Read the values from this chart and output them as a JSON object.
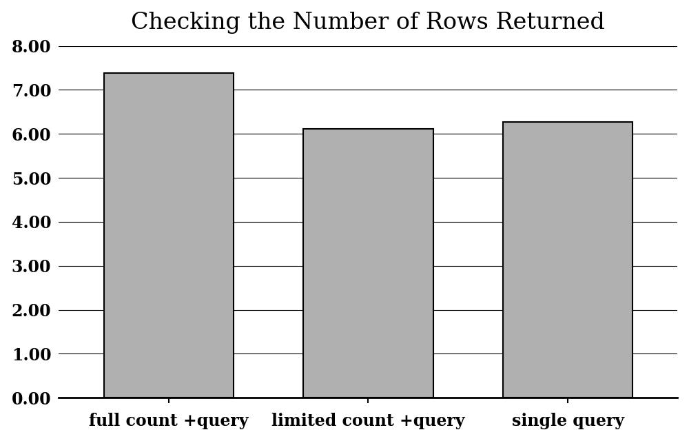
{
  "title": "Checking the Number of Rows Returned",
  "categories": [
    "full count +query",
    "limited count +query",
    "single query"
  ],
  "values": [
    7.38,
    6.11,
    6.27
  ],
  "bar_color": "#b0b0b0",
  "bar_edgecolor": "#000000",
  "bar_linewidth": 1.5,
  "ylim": [
    0.0,
    8.0
  ],
  "yticks": [
    0.0,
    1.0,
    2.0,
    3.0,
    4.0,
    5.0,
    6.0,
    7.0,
    8.0
  ],
  "title_fontsize": 24,
  "tick_fontsize": 17,
  "xlabel_fontsize": 17,
  "background_color": "#ffffff",
  "bar_width": 0.65,
  "figsize": [
    10.0,
    6.4
  ],
  "dpi": 100,
  "xlim": [
    -0.55,
    2.55
  ]
}
